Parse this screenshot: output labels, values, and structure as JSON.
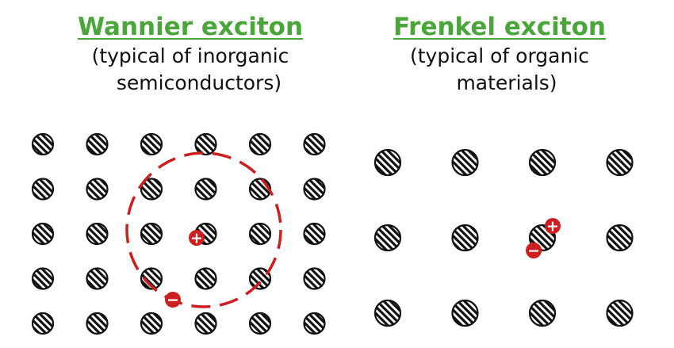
{
  "wannier": {
    "title": "Wannier exciton",
    "subtitle_line1": "(typical of inorganic",
    "subtitle_line2": "semiconductors)",
    "rows": 5,
    "cols": 6
  },
  "frenkel": {
    "title": "Frenkel exciton",
    "subtitle_line1": "(typical of organic",
    "subtitle_line2": "materials)",
    "rows": 3,
    "cols": 4
  },
  "charges": {
    "hole_symbol": "+",
    "electron_symbol": "−"
  },
  "colors": {
    "heading": "#4aa63a",
    "charge": "#cc1f1f",
    "atom_stroke": "#111111"
  },
  "icons": [
    "atom-icon",
    "hole-icon",
    "electron-icon",
    "exciton-radius-circle"
  ]
}
